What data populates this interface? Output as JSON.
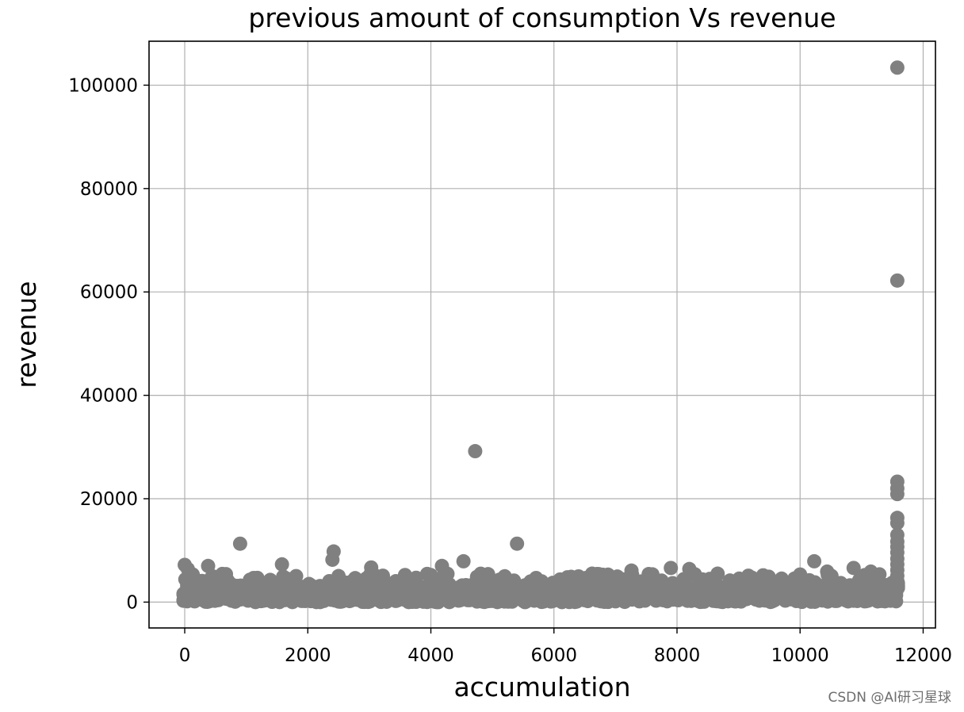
{
  "chart_data": {
    "type": "scatter",
    "title": "previous amount of consumption Vs revenue",
    "xlabel": "accumulation",
    "ylabel": "revenue",
    "xlim": [
      -580,
      12200
    ],
    "ylim": [
      -5000,
      108500
    ],
    "xticks": [
      0,
      2000,
      4000,
      6000,
      8000,
      10000,
      12000
    ],
    "yticks": [
      0,
      20000,
      40000,
      60000,
      80000,
      100000
    ],
    "grid": true,
    "marker_color": "#808080",
    "points": [
      [
        0,
        7200
      ],
      [
        50,
        6400
      ],
      [
        380,
        7000
      ],
      [
        900,
        11300
      ],
      [
        1580,
        7300
      ],
      [
        2400,
        8200
      ],
      [
        2420,
        9800
      ],
      [
        3030,
        6700
      ],
      [
        4180,
        7000
      ],
      [
        4530,
        7900
      ],
      [
        4720,
        29200
      ],
      [
        5200,
        5000
      ],
      [
        5400,
        11300
      ],
      [
        6620,
        5500
      ],
      [
        7260,
        6100
      ],
      [
        7900,
        6600
      ],
      [
        8200,
        6400
      ],
      [
        8660,
        5500
      ],
      [
        10230,
        7900
      ],
      [
        10440,
        5900
      ],
      [
        10870,
        6600
      ],
      [
        11150,
        5900
      ],
      [
        11580,
        103400
      ],
      [
        11580,
        62200
      ],
      [
        11580,
        23300
      ],
      [
        11580,
        22000
      ],
      [
        11580,
        20900
      ],
      [
        11580,
        16300
      ],
      [
        11580,
        15300
      ],
      [
        11580,
        13000
      ],
      [
        11580,
        11700
      ],
      [
        11580,
        10700
      ],
      [
        11580,
        9600
      ],
      [
        11580,
        8400
      ],
      [
        11580,
        7300
      ],
      [
        11580,
        6200
      ],
      [
        11580,
        5100
      ],
      [
        11580,
        4100
      ],
      [
        11580,
        3100
      ]
    ],
    "dense_band": {
      "x_range": [
        -20,
        11600
      ],
      "y_range": [
        0,
        3300
      ],
      "spread_to": 5500
    }
  },
  "watermark": "CSDN @AI研习星球"
}
